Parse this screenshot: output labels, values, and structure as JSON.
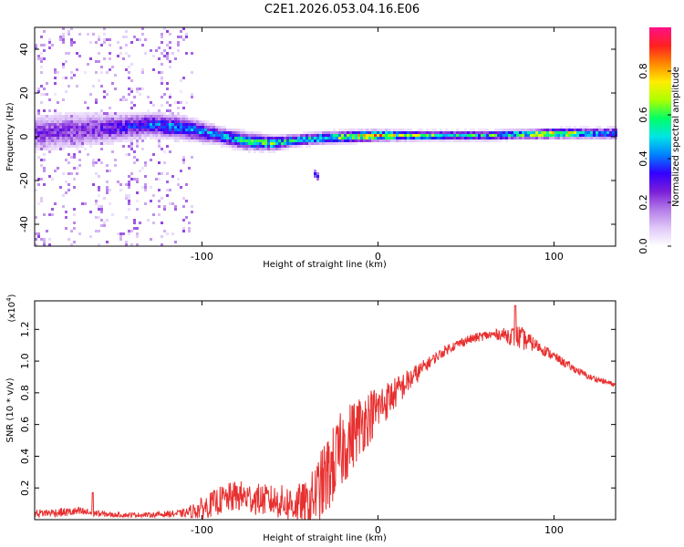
{
  "title": "C2E1.2026.053.04.16.E06",
  "chart_data": [
    {
      "type": "heatmap",
      "title": "C2E1.2026.053.04.16.E06",
      "xlabel": "Height of straight line (km)",
      "ylabel": "Frequency (Hz)",
      "xlim": [
        -195,
        135
      ],
      "ylim": [
        -50,
        50
      ],
      "xticks": [
        -100,
        0,
        100
      ],
      "xtick_labels": [
        "-100",
        "0",
        "100"
      ],
      "yticks": [
        -40,
        -20,
        0,
        20,
        40
      ],
      "ytick_labels": [
        "-40",
        "-20",
        "0",
        "20",
        "40"
      ],
      "colorbar": {
        "label": "Normalized spectral amplitude",
        "range": [
          0,
          1
        ],
        "ticks": [
          0.0,
          0.2,
          0.4,
          0.6,
          0.8
        ],
        "tick_labels": [
          "0.0",
          "0.2",
          "0.4",
          "0.6",
          "0.8"
        ],
        "colormap": [
          "#ffffff",
          "#e0c8f8",
          "#b47ce8",
          "#7a1ed8",
          "#3300ff",
          "#0080ff",
          "#00e5e5",
          "#00ff66",
          "#aaff00",
          "#ffee00",
          "#ff8800",
          "#ff2020",
          "#ff1088"
        ]
      },
      "ridge": {
        "x_km": [
          -195,
          -170,
          -150,
          -130,
          -110,
          -90,
          -75,
          -60,
          -45,
          -30,
          -15,
          0,
          20,
          40,
          60,
          80,
          100,
          120,
          135
        ],
        "center_hz": [
          1.5,
          3.0,
          4.0,
          5.5,
          4.0,
          0.5,
          -2.0,
          -3.0,
          -1.5,
          -0.5,
          0.0,
          0.5,
          0.5,
          0.5,
          0.5,
          1.0,
          1.5,
          1.5,
          1.5
        ],
        "amplitude": [
          0.25,
          0.25,
          0.3,
          0.4,
          0.45,
          0.45,
          0.55,
          0.6,
          0.5,
          0.6,
          0.7,
          0.85,
          0.65,
          0.55,
          0.55,
          0.6,
          0.9,
          0.5,
          0.45
        ],
        "spread_hz": [
          6,
          6,
          5,
          4,
          4,
          3,
          3,
          2.5,
          2,
          2,
          2,
          1.8,
          1.6,
          1.6,
          1.6,
          1.6,
          1.6,
          1.8,
          2
        ]
      },
      "secondary_feature": {
        "x_km": [
          -37,
          -33
        ],
        "center_hz": [
          -16,
          -19
        ],
        "amplitude": 0.35
      },
      "noise": {
        "x_km_range": [
          -195,
          -105
        ],
        "amplitude_max": 0.22
      }
    },
    {
      "type": "line",
      "xlabel": "Height of straight line (km)",
      "ylabel": "SNR (10 * v/v)",
      "scale_label": "(x10",
      "scale_exponent": "4",
      "xlim": [
        -195,
        135
      ],
      "ylim": [
        0,
        13800
      ],
      "xticks": [
        -100,
        0,
        100
      ],
      "xtick_labels": [
        "-100",
        "0",
        "100"
      ],
      "yticks": [
        2000,
        4000,
        6000,
        8000,
        10000,
        12000
      ],
      "ytick_labels": [
        "0.2",
        "0.4",
        "0.6",
        "0.8",
        "1.0",
        "1.2"
      ],
      "color": "#e83030",
      "envelope": {
        "x": [
          -195,
          -170,
          -150,
          -130,
          -110,
          -100,
          -90,
          -80,
          -70,
          -60,
          -50,
          -40,
          -30,
          -20,
          -10,
          0,
          10,
          20,
          30,
          40,
          50,
          60,
          70,
          80,
          90,
          100,
          110,
          120,
          135
        ],
        "mean": [
          400,
          500,
          300,
          300,
          400,
          700,
          1200,
          1500,
          1300,
          1200,
          1000,
          900,
          2500,
          4500,
          6000,
          7000,
          8000,
          9000,
          10000,
          10800,
          11300,
          11600,
          11700,
          11500,
          11000,
          10300,
          9600,
          9000,
          8500
        ],
        "noise": [
          250,
          300,
          150,
          150,
          250,
          700,
          900,
          1000,
          1000,
          1000,
          1200,
          1500,
          2500,
          2500,
          2000,
          1500,
          1000,
          700,
          350,
          300,
          300,
          300,
          350,
          800,
          400,
          300,
          250,
          200,
          150
        ]
      },
      "spikes": [
        {
          "x": -162,
          "y": 1700
        },
        {
          "x": 78,
          "y": 13500
        }
      ]
    }
  ]
}
